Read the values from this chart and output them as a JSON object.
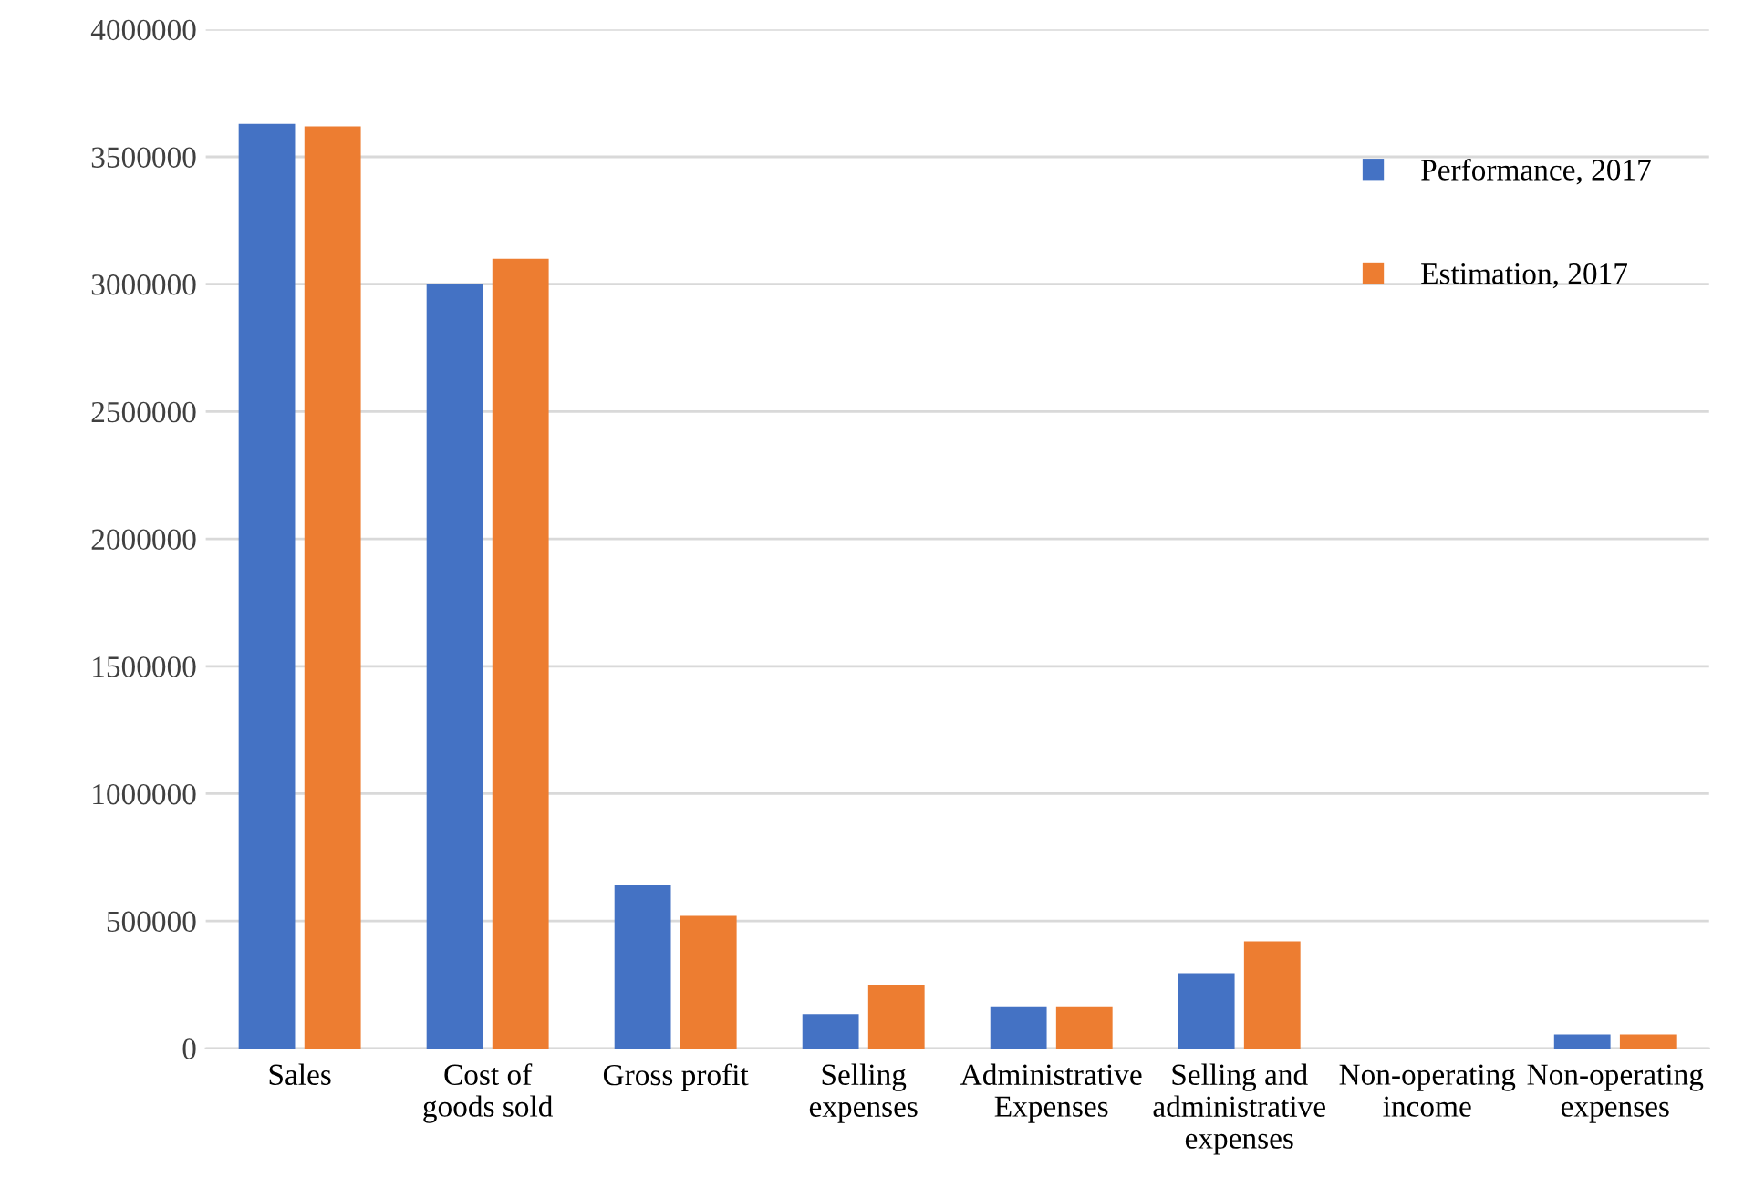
{
  "chart_data": {
    "type": "bar",
    "categories": [
      "Sales",
      "Cost of\ngoods sold",
      "Gross profit",
      "Selling\nexpenses",
      "Administrative\nExpenses",
      "Selling and\nadministrative\nexpenses",
      "Non-operating\nincome",
      "Non-operating\nexpenses"
    ],
    "series": [
      {
        "name": "Performance, 2017",
        "color": "#4472c4",
        "values": [
          3630000,
          3000000,
          640000,
          135000,
          165000,
          295000,
          0,
          55000
        ]
      },
      {
        "name": "Estimation, 2017",
        "color": "#ed7d31",
        "values": [
          3620000,
          3100000,
          520000,
          250000,
          165000,
          420000,
          0,
          55000
        ]
      }
    ],
    "ylim": [
      0,
      4000000
    ],
    "yticks": [
      0,
      500000,
      1000000,
      1500000,
      2000000,
      2500000,
      3000000,
      3500000,
      4000000
    ],
    "grid": "y",
    "legend": "top right"
  }
}
